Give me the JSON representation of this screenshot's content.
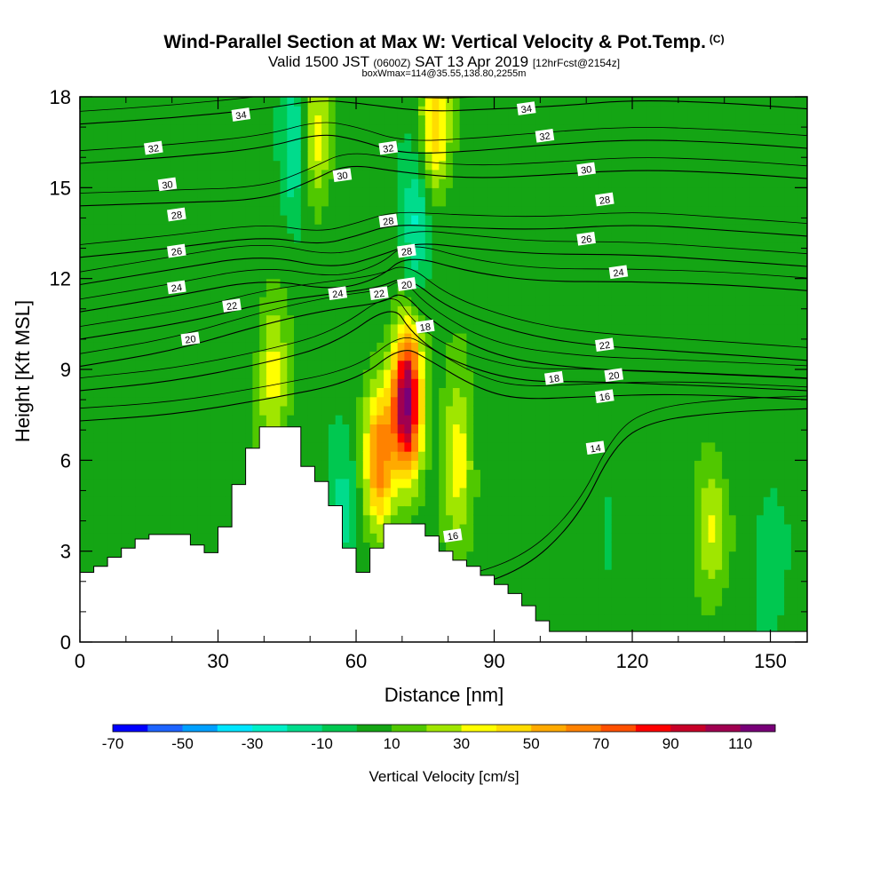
{
  "header": {
    "title": "Wind-Parallel Section at Max W: Vertical Velocity & Pot.Temp.",
    "title_mark": "(C)",
    "valid_a": "Valid 1500 JST",
    "valid_zulu": "(0600Z)",
    "valid_b": "SAT 13 Apr 2019",
    "forecast": "[12hrFcst@2154z]",
    "box_info": "boxWmax=114@35.55,138.80,2255m"
  },
  "chart_data": {
    "type": "heatmap",
    "xlabel": "Distance [nm]",
    "ylabel": "Height [Kft MSL]",
    "xlim": [
      0,
      158
    ],
    "ylim": [
      0,
      18
    ],
    "x_ticks": [
      0,
      30,
      60,
      90,
      120,
      150
    ],
    "y_ticks": [
      0,
      3,
      6,
      9,
      12,
      15,
      18
    ],
    "colorbar": {
      "label": "Vertical Velocity [cm/s]",
      "tick_labels": [
        "-70",
        "-50",
        "-30",
        "-10",
        "10",
        "30",
        "50",
        "70",
        "90",
        "110"
      ],
      "levels": [
        -70,
        -60,
        -50,
        -40,
        -30,
        -20,
        -10,
        0,
        10,
        20,
        30,
        40,
        50,
        60,
        70,
        80,
        90,
        100,
        110,
        120
      ],
      "colors": [
        "#0000ff",
        "#1e64ff",
        "#00a0ff",
        "#00e6ff",
        "#00f0c8",
        "#00dc8c",
        "#00c850",
        "#14a514",
        "#50c800",
        "#a0e600",
        "#ffff00",
        "#ffdc00",
        "#ffaa00",
        "#ff8200",
        "#ff5000",
        "#ff0000",
        "#c80028",
        "#a00050",
        "#780078"
      ]
    },
    "terrain": [
      [
        0,
        2.3
      ],
      [
        3,
        2.5
      ],
      [
        6,
        2.8
      ],
      [
        9,
        3.1
      ],
      [
        12,
        3.4
      ],
      [
        15,
        3.55
      ],
      [
        22,
        3.55
      ],
      [
        24,
        3.2
      ],
      [
        27,
        2.95
      ],
      [
        30,
        3.8
      ],
      [
        33,
        5.2
      ],
      [
        36,
        6.4
      ],
      [
        39,
        7.1
      ],
      [
        45,
        7.1
      ],
      [
        48,
        5.8
      ],
      [
        51,
        5.3
      ],
      [
        54,
        4.5
      ],
      [
        57,
        3.1
      ],
      [
        60,
        2.3
      ],
      [
        63,
        3.1
      ],
      [
        66,
        3.9
      ],
      [
        72,
        3.9
      ],
      [
        75,
        3.5
      ],
      [
        78,
        3.0
      ],
      [
        81,
        2.7
      ],
      [
        84,
        2.5
      ],
      [
        87,
        2.2
      ],
      [
        90,
        1.9
      ],
      [
        93,
        1.6
      ],
      [
        96,
        1.2
      ],
      [
        99,
        0.7
      ],
      [
        102,
        0.35
      ],
      [
        158,
        0.35
      ]
    ],
    "velocity_features": [
      {
        "x": 71,
        "y": 8.0,
        "w": 110
      },
      {
        "x": 65,
        "y": 6.0,
        "w": 60
      },
      {
        "x": 82,
        "y": 6.2,
        "w": 35
      },
      {
        "x": 42,
        "y": 9.0,
        "w": 30
      },
      {
        "x": 51,
        "y": 16.5,
        "w": 30
      },
      {
        "x": 77,
        "y": 17.0,
        "w": 40
      },
      {
        "x": 47,
        "y": 16.5,
        "w": -30
      },
      {
        "x": 73,
        "y": 14.0,
        "w": -28
      },
      {
        "x": 57,
        "y": 4.2,
        "w": -20
      },
      {
        "x": 137,
        "y": 3.8,
        "w": 25
      },
      {
        "x": 115,
        "y": 3.5,
        "w": -8
      },
      {
        "x": 150,
        "y": 2.5,
        "w": -15
      }
    ],
    "theta_contours": [
      {
        "label": "14",
        "points": [
          [
            58,
            1.5
          ],
          [
            75,
            1.5
          ],
          [
            95,
            2.2
          ],
          [
            108,
            4.0
          ],
          [
            116,
            6.5
          ],
          [
            124,
            7.3
          ],
          [
            140,
            7.6
          ],
          [
            158,
            7.7
          ]
        ],
        "label_at": [
          112,
          6.4
        ]
      },
      {
        "label": "16",
        "points": [
          [
            0,
            7.3
          ],
          [
            20,
            7.5
          ],
          [
            40,
            8.0
          ],
          [
            60,
            8.6
          ],
          [
            70,
            9.8
          ],
          [
            76,
            9.3
          ],
          [
            86,
            8.4
          ],
          [
            95,
            8.0
          ],
          [
            110,
            8.1
          ],
          [
            130,
            8.2
          ],
          [
            158,
            8.0
          ]
        ],
        "label_at": [
          114,
          8.1
        ]
      },
      {
        "label": "18",
        "points": [
          [
            0,
            8.3
          ],
          [
            20,
            8.6
          ],
          [
            40,
            9.2
          ],
          [
            55,
            9.8
          ],
          [
            68,
            11.2
          ],
          [
            72,
            10.2
          ],
          [
            80,
            9.3
          ],
          [
            95,
            8.6
          ],
          [
            110,
            8.6
          ],
          [
            130,
            8.5
          ],
          [
            158,
            8.3
          ]
        ],
        "label_at": [
          103,
          8.7
        ]
      },
      {
        "label": "20",
        "points": [
          [
            0,
            9.1
          ],
          [
            20,
            9.6
          ],
          [
            40,
            10.5
          ],
          [
            55,
            11.0
          ],
          [
            66,
            11.2
          ],
          [
            70,
            11.6
          ],
          [
            76,
            10.6
          ],
          [
            90,
            9.4
          ],
          [
            110,
            9.0
          ],
          [
            130,
            8.9
          ],
          [
            158,
            8.7
          ]
        ],
        "label_at": [
          24,
          10.0
        ]
      },
      {
        "label": "22",
        "points": [
          [
            0,
            10.0
          ],
          [
            25,
            10.6
          ],
          [
            40,
            11.2
          ],
          [
            55,
            11.5
          ],
          [
            65,
            11.7
          ],
          [
            71,
            12.1
          ],
          [
            80,
            11.0
          ],
          [
            95,
            10.2
          ],
          [
            110,
            9.8
          ],
          [
            130,
            9.6
          ],
          [
            158,
            9.3
          ]
        ],
        "label_at": [
          33,
          11.1
        ]
      },
      {
        "label": "24",
        "points": [
          [
            0,
            10.9
          ],
          [
            20,
            11.4
          ],
          [
            40,
            12.0
          ],
          [
            55,
            11.6
          ],
          [
            65,
            12.0
          ],
          [
            71,
            12.8
          ],
          [
            85,
            12.2
          ],
          [
            100,
            11.9
          ],
          [
            120,
            11.9
          ],
          [
            140,
            11.8
          ],
          [
            158,
            11.6
          ]
        ],
        "label_at": [
          21,
          11.7
        ]
      },
      {
        "label": "26",
        "points": [
          [
            0,
            11.8
          ],
          [
            20,
            12.3
          ],
          [
            40,
            12.8
          ],
          [
            55,
            12.3
          ],
          [
            66,
            12.8
          ],
          [
            73,
            13.2
          ],
          [
            85,
            13.0
          ],
          [
            100,
            12.8
          ],
          [
            120,
            12.8
          ],
          [
            140,
            12.6
          ],
          [
            158,
            12.4
          ]
        ],
        "label_at": [
          21,
          12.9
        ]
      },
      {
        "label": "28",
        "points": [
          [
            0,
            12.7
          ],
          [
            20,
            13.0
          ],
          [
            40,
            13.4
          ],
          [
            52,
            13.1
          ],
          [
            60,
            13.4
          ],
          [
            68,
            13.8
          ],
          [
            80,
            13.7
          ],
          [
            100,
            13.6
          ],
          [
            120,
            13.8
          ],
          [
            140,
            13.6
          ],
          [
            158,
            13.4
          ]
        ],
        "label_at": [
          21,
          14.1
        ]
      },
      {
        "label": "30",
        "points": [
          [
            0,
            14.4
          ],
          [
            20,
            14.5
          ],
          [
            40,
            14.6
          ],
          [
            50,
            15.2
          ],
          [
            58,
            15.8
          ],
          [
            70,
            15.5
          ],
          [
            85,
            15.3
          ],
          [
            100,
            15.4
          ],
          [
            120,
            15.6
          ],
          [
            140,
            15.5
          ],
          [
            158,
            15.3
          ]
        ],
        "label_at": [
          19,
          15.1
        ]
      },
      {
        "label": "32",
        "points": [
          [
            0,
            15.8
          ],
          [
            20,
            16.0
          ],
          [
            40,
            16.3
          ],
          [
            52,
            16.8
          ],
          [
            60,
            16.6
          ],
          [
            70,
            16.1
          ],
          [
            85,
            16.2
          ],
          [
            100,
            16.4
          ],
          [
            120,
            16.6
          ],
          [
            140,
            16.5
          ],
          [
            158,
            16.3
          ]
        ],
        "label_at": [
          16,
          16.3
        ]
      },
      {
        "label": "34",
        "points": [
          [
            0,
            17.1
          ],
          [
            20,
            17.3
          ],
          [
            40,
            17.6
          ],
          [
            52,
            17.9
          ],
          [
            60,
            17.8
          ],
          [
            75,
            17.5
          ],
          [
            90,
            17.6
          ],
          [
            105,
            17.7
          ],
          [
            120,
            17.9
          ],
          [
            140,
            17.8
          ],
          [
            158,
            17.6
          ]
        ],
        "label_at": [
          35,
          17.4
        ]
      }
    ],
    "extra_contour_labels": [
      {
        "label": "34",
        "x": 97,
        "y": 17.6
      },
      {
        "label": "32",
        "x": 67,
        "y": 16.3
      },
      {
        "label": "32",
        "x": 101,
        "y": 16.7
      },
      {
        "label": "30",
        "x": 57,
        "y": 15.4
      },
      {
        "label": "30",
        "x": 110,
        "y": 15.6
      },
      {
        "label": "28",
        "x": 67,
        "y": 13.9
      },
      {
        "label": "28",
        "x": 114,
        "y": 14.6
      },
      {
        "label": "28",
        "x": 71,
        "y": 12.9
      },
      {
        "label": "26",
        "x": 110,
        "y": 13.3
      },
      {
        "label": "24",
        "x": 56,
        "y": 11.5
      },
      {
        "label": "24",
        "x": 117,
        "y": 12.2
      },
      {
        "label": "22",
        "x": 65,
        "y": 11.5
      },
      {
        "label": "22",
        "x": 114,
        "y": 9.8
      },
      {
        "label": "20",
        "x": 71,
        "y": 11.8
      },
      {
        "label": "20",
        "x": 116,
        "y": 8.8
      },
      {
        "label": "18",
        "x": 75,
        "y": 10.4
      },
      {
        "label": "16",
        "x": 81,
        "y": 3.5
      }
    ]
  }
}
